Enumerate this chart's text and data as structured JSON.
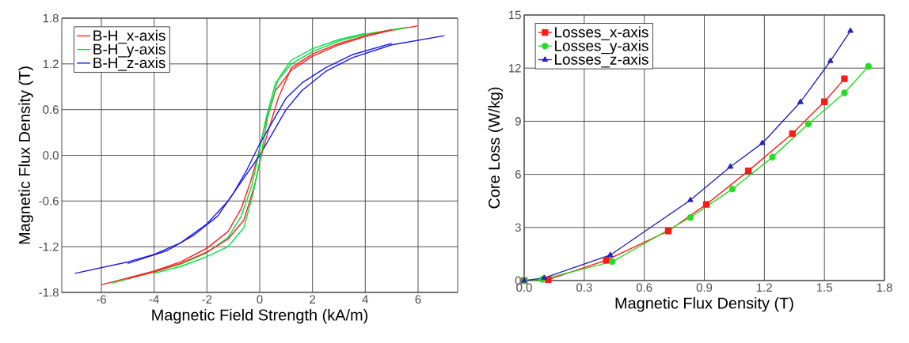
{
  "chart_data": [
    {
      "type": "line",
      "xlabel": "Magnetic Field Strength (kA/m)",
      "ylabel": "Magnetic Flux Density (T)",
      "xlim": [
        -7.5,
        7.5
      ],
      "ylim": [
        -1.8,
        1.8
      ],
      "xticks": [
        -6,
        -4,
        -2,
        {
          "value": 0,
          "label": "0"
        },
        2,
        4,
        6
      ],
      "yticks": [
        -1.8,
        -1.2,
        -0.6,
        {
          "value": 0,
          "label": "0.0"
        },
        0.6,
        1.2,
        1.8
      ],
      "grid": true,
      "legend": "top left",
      "series": [
        {
          "name": "B-H_x-axis",
          "color": "#ff2020",
          "x": [
            -6,
            -4,
            -3,
            -2,
            -1.2,
            -0.7,
            -0.35,
            -0.1,
            0.2,
            0.6,
            1.2,
            2,
            3,
            4,
            5,
            6
          ],
          "values": [
            -1.7,
            -1.52,
            -1.4,
            -1.22,
            -1.0,
            -0.7,
            -0.35,
            -0.05,
            0.4,
            0.85,
            1.12,
            1.3,
            1.45,
            1.56,
            1.64,
            1.7
          ]
        },
        {
          "name": "B-H_y-axis",
          "color": "#00e040",
          "x": [
            -5.6,
            -4,
            -3,
            -2,
            -1.2,
            -0.7,
            -0.3,
            -0.05,
            0.25,
            0.6,
            1.2,
            2,
            3,
            4,
            5.6
          ],
          "values": [
            -1.68,
            -1.53,
            -1.43,
            -1.28,
            -1.08,
            -0.8,
            -0.4,
            0,
            0.5,
            0.95,
            1.2,
            1.36,
            1.5,
            1.59,
            1.68
          ]
        },
        {
          "name": "B-H_z-axis",
          "color": "#1a1aee",
          "x": [
            -7,
            -5,
            -4,
            -3,
            -2,
            -1.2,
            -0.6,
            0,
            0.5,
            1,
            1.6,
            2.5,
            3.5,
            5,
            7
          ],
          "values": [
            -1.55,
            -1.4,
            -1.3,
            -1.15,
            -0.9,
            -0.6,
            -0.3,
            0,
            0.3,
            0.6,
            0.85,
            1.1,
            1.28,
            1.45,
            1.57
          ]
        },
        {
          "color": "#ff2020",
          "x": [
            -5,
            -4,
            -3,
            -2,
            -1.2,
            -0.6,
            -0.2,
            0.1,
            0.35,
            0.7,
            1.2,
            2,
            3,
            4,
            5
          ],
          "values": [
            -1.62,
            -1.53,
            -1.42,
            -1.27,
            -1.1,
            -0.85,
            -0.4,
            0.05,
            0.35,
            0.75,
            1.15,
            1.33,
            1.47,
            1.57,
            1.65
          ]
        },
        {
          "color": "#00e040",
          "x": [
            -4,
            -3,
            -2,
            -1.2,
            -0.6,
            -0.25,
            0.05,
            0.3,
            0.7,
            1.2,
            2,
            3,
            4
          ],
          "values": [
            -1.55,
            -1.46,
            -1.33,
            -1.2,
            -0.95,
            -0.5,
            0,
            0.5,
            1.0,
            1.25,
            1.4,
            1.52,
            1.6
          ]
        },
        {
          "color": "#1a1aee",
          "x": [
            -5,
            -3.5,
            -2.5,
            -1.6,
            -1,
            -0.5,
            0,
            0.5,
            1,
            1.6,
            2.5,
            3.5,
            5
          ],
          "values": [
            -1.42,
            -1.25,
            -1.05,
            -0.8,
            -0.5,
            -0.2,
            0.15,
            0.45,
            0.75,
            0.95,
            1.15,
            1.32,
            1.47
          ]
        }
      ]
    },
    {
      "type": "line",
      "xlabel": "Magnetic Flux Density (T)",
      "ylabel": "Core Loss (W/kg)",
      "xlim": [
        0,
        1.8
      ],
      "ylim": [
        0,
        15
      ],
      "xticks": [
        {
          "value": 0,
          "label": "0.0"
        },
        0.3,
        0.6,
        0.9,
        1.2,
        1.5,
        1.8
      ],
      "yticks": [
        0,
        3,
        6,
        9,
        12,
        15
      ],
      "grid": true,
      "legend": "top left",
      "series": [
        {
          "name": "Losses_x-axis",
          "color": "#ff1a1a",
          "marker": "square",
          "x": [
            0,
            0.12,
            0.41,
            0.72,
            0.91,
            1.12,
            1.34,
            1.5,
            1.6
          ],
          "values": [
            0,
            0.05,
            1.15,
            2.8,
            4.3,
            6.2,
            8.3,
            10.1,
            11.4
          ]
        },
        {
          "name": "Losses_y-axis",
          "color": "#22dd22",
          "marker": "circle",
          "x": [
            0,
            0.09,
            0.44,
            0.83,
            1.04,
            1.24,
            1.42,
            1.6,
            1.72
          ],
          "values": [
            0,
            0.07,
            1.07,
            3.56,
            5.17,
            6.97,
            8.85,
            10.6,
            12.1
          ]
        },
        {
          "name": "Losses_z-axis",
          "color": "#2626b8",
          "marker": "triangle",
          "x": [
            0,
            0.1,
            0.43,
            0.83,
            1.03,
            1.19,
            1.38,
            1.53,
            1.63
          ],
          "values": [
            0,
            0.15,
            1.44,
            4.54,
            6.43,
            7.76,
            10.08,
            12.4,
            14.1
          ]
        }
      ]
    }
  ]
}
